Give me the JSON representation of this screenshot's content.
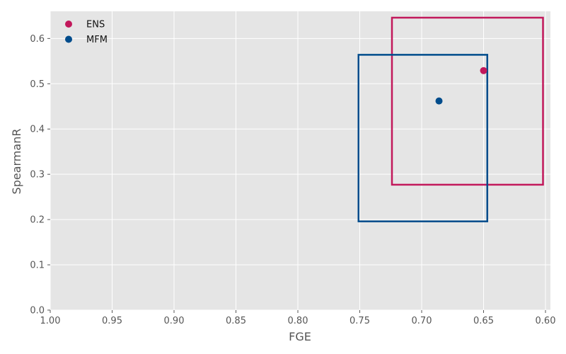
{
  "chart_data": {
    "type": "scatter",
    "title": "",
    "xlabel": "FGE",
    "ylabel": "SpearmanR",
    "xlim": [
      1.0,
      0.596
    ],
    "ylim": [
      0.0,
      0.66
    ],
    "x_inverted": true,
    "grid": true,
    "legend_placement": "top-left",
    "xticks": [
      1.0,
      0.95,
      0.9,
      0.85,
      0.8,
      0.75,
      0.7,
      0.65,
      0.6
    ],
    "xtick_labels": [
      "1.00",
      "0.95",
      "0.90",
      "0.85",
      "0.80",
      "0.75",
      "0.70",
      "0.65",
      "0.60"
    ],
    "yticks": [
      0.0,
      0.1,
      0.2,
      0.3,
      0.4,
      0.5,
      0.6
    ],
    "ytick_labels": [
      "0.0",
      "0.1",
      "0.2",
      "0.3",
      "0.4",
      "0.5",
      "0.6"
    ],
    "series": [
      {
        "name": "ENS",
        "color": "#c2185b",
        "x": 0.65,
        "y": 0.529,
        "box": {
          "x_min": 0.602,
          "x_max": 0.724,
          "y_min": 0.277,
          "y_max": 0.646
        }
      },
      {
        "name": "MFM",
        "color": "#004c8c",
        "x": 0.686,
        "y": 0.462,
        "box": {
          "x_min": 0.647,
          "x_max": 0.751,
          "y_min": 0.196,
          "y_max": 0.564
        }
      }
    ]
  }
}
